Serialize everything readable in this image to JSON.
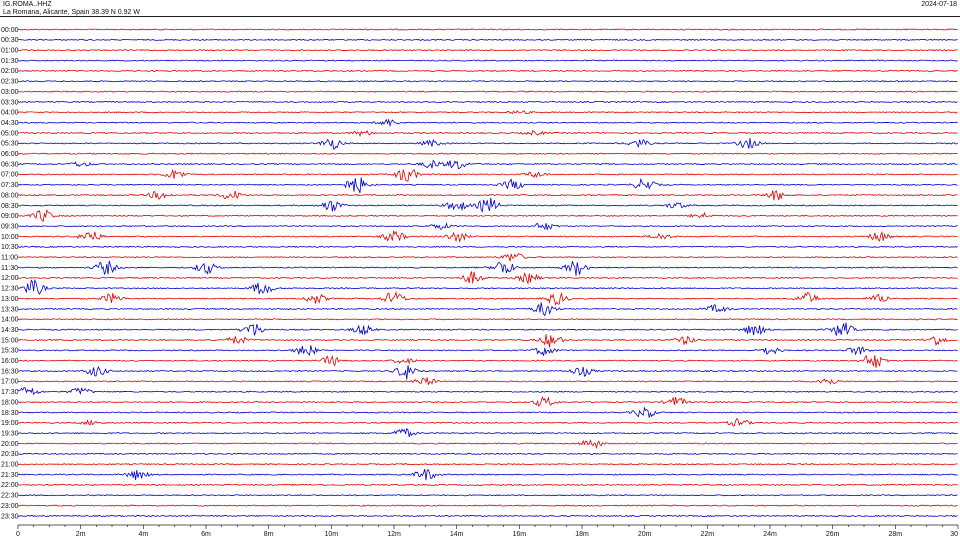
{
  "header": {
    "station": "IG.ROMA..HHZ",
    "location": "La Romana, Alicante, Spain  38.39 N 0.92 W",
    "date": "2024-07-18"
  },
  "chart_data": {
    "type": "line",
    "title": "",
    "xlabel": "",
    "ylabel": "",
    "x_unit_minutes_range": [
      0,
      30
    ],
    "x_ticks": [
      "0",
      "2m",
      "4m",
      "6m",
      "8m",
      "10m",
      "12m",
      "14m",
      "16m",
      "18m",
      "20m",
      "22m",
      "24m",
      "26m",
      "28m",
      "30"
    ],
    "row_labels": [
      "00:00",
      "00:30",
      "01:00",
      "01:30",
      "02:00",
      "02:30",
      "03:00",
      "03:30",
      "04:00",
      "04:30",
      "05:00",
      "05:30",
      "06:00",
      "06:30",
      "07:00",
      "07:30",
      "08:00",
      "08:30",
      "09:00",
      "09:30",
      "10:00",
      "10:30",
      "11:00",
      "11:30",
      "12:00",
      "12:30",
      "13:00",
      "13:30",
      "14:00",
      "14:30",
      "15:00",
      "15:30",
      "16:00",
      "16:30",
      "17:00",
      "17:30",
      "18:00",
      "18:30",
      "19:00",
      "19:30",
      "20:00",
      "20:30",
      "21:00",
      "21:30",
      "22:00",
      "22:30",
      "23:00",
      "23:30"
    ],
    "trace_colors": [
      "#e00000",
      "#0000cc"
    ],
    "grid": false,
    "bursts": [
      {
        "row": 8,
        "minute": 16.0,
        "amplitude": 1.5
      },
      {
        "row": 9,
        "minute": 11.8,
        "amplitude": 3.5
      },
      {
        "row": 10,
        "minute": 11.0,
        "amplitude": 2.5
      },
      {
        "row": 10,
        "minute": 16.5,
        "amplitude": 2.0
      },
      {
        "row": 11,
        "minute": 10.0,
        "amplitude": 6.0
      },
      {
        "row": 11,
        "minute": 13.2,
        "amplitude": 3.0
      },
      {
        "row": 11,
        "minute": 19.8,
        "amplitude": 4.0
      },
      {
        "row": 11,
        "minute": 23.3,
        "amplitude": 5.0
      },
      {
        "row": 13,
        "minute": 2.0,
        "amplitude": 2.5
      },
      {
        "row": 13,
        "minute": 13.2,
        "amplitude": 4.0
      },
      {
        "row": 13,
        "minute": 14.0,
        "amplitude": 5.0
      },
      {
        "row": 14,
        "minute": 5.0,
        "amplitude": 5.0
      },
      {
        "row": 14,
        "minute": 12.4,
        "amplitude": 8.0
      },
      {
        "row": 14,
        "minute": 16.5,
        "amplitude": 3.0
      },
      {
        "row": 15,
        "minute": 10.8,
        "amplitude": 9.0
      },
      {
        "row": 15,
        "minute": 15.8,
        "amplitude": 5.0
      },
      {
        "row": 15,
        "minute": 20.0,
        "amplitude": 6.0
      },
      {
        "row": 16,
        "minute": 4.5,
        "amplitude": 4.0
      },
      {
        "row": 16,
        "minute": 6.8,
        "amplitude": 5.0
      },
      {
        "row": 16,
        "minute": 24.2,
        "amplitude": 5.0
      },
      {
        "row": 17,
        "minute": 10.0,
        "amplitude": 6.0
      },
      {
        "row": 17,
        "minute": 14.0,
        "amplitude": 6.0
      },
      {
        "row": 17,
        "minute": 15.0,
        "amplitude": 8.0
      },
      {
        "row": 17,
        "minute": 21.0,
        "amplitude": 3.0
      },
      {
        "row": 18,
        "minute": 0.8,
        "amplitude": 6.0
      },
      {
        "row": 18,
        "minute": 21.8,
        "amplitude": 3.0
      },
      {
        "row": 19,
        "minute": 13.5,
        "amplitude": 3.0
      },
      {
        "row": 19,
        "minute": 16.8,
        "amplitude": 4.0
      },
      {
        "row": 20,
        "minute": 2.3,
        "amplitude": 6.0
      },
      {
        "row": 20,
        "minute": 12.0,
        "amplitude": 6.0
      },
      {
        "row": 20,
        "minute": 14.0,
        "amplitude": 5.0
      },
      {
        "row": 20,
        "minute": 20.5,
        "amplitude": 3.0
      },
      {
        "row": 20,
        "minute": 27.5,
        "amplitude": 5.0
      },
      {
        "row": 22,
        "minute": 15.8,
        "amplitude": 5.0
      },
      {
        "row": 23,
        "minute": 2.8,
        "amplitude": 7.0
      },
      {
        "row": 23,
        "minute": 6.0,
        "amplitude": 6.0
      },
      {
        "row": 23,
        "minute": 15.5,
        "amplitude": 8.0
      },
      {
        "row": 23,
        "minute": 17.8,
        "amplitude": 8.0
      },
      {
        "row": 24,
        "minute": 14.5,
        "amplitude": 6.0
      },
      {
        "row": 24,
        "minute": 16.3,
        "amplitude": 5.0
      },
      {
        "row": 25,
        "minute": 0.5,
        "amplitude": 8.0
      },
      {
        "row": 25,
        "minute": 7.8,
        "amplitude": 7.0
      },
      {
        "row": 26,
        "minute": 3.0,
        "amplitude": 5.0
      },
      {
        "row": 26,
        "minute": 9.5,
        "amplitude": 5.0
      },
      {
        "row": 26,
        "minute": 12.0,
        "amplitude": 7.0
      },
      {
        "row": 26,
        "minute": 17.2,
        "amplitude": 6.0
      },
      {
        "row": 26,
        "minute": 25.2,
        "amplitude": 6.0
      },
      {
        "row": 26,
        "minute": 27.5,
        "amplitude": 4.0
      },
      {
        "row": 27,
        "minute": 16.8,
        "amplitude": 7.0
      },
      {
        "row": 27,
        "minute": 22.3,
        "amplitude": 4.0
      },
      {
        "row": 29,
        "minute": 7.5,
        "amplitude": 7.0
      },
      {
        "row": 29,
        "minute": 11.0,
        "amplitude": 5.0
      },
      {
        "row": 29,
        "minute": 23.5,
        "amplitude": 6.0
      },
      {
        "row": 29,
        "minute": 26.3,
        "amplitude": 8.0
      },
      {
        "row": 30,
        "minute": 7.0,
        "amplitude": 4.0
      },
      {
        "row": 30,
        "minute": 17.0,
        "amplitude": 7.0
      },
      {
        "row": 30,
        "minute": 21.3,
        "amplitude": 4.0
      },
      {
        "row": 30,
        "minute": 29.3,
        "amplitude": 5.0
      },
      {
        "row": 31,
        "minute": 9.2,
        "amplitude": 6.0
      },
      {
        "row": 31,
        "minute": 16.8,
        "amplitude": 5.0
      },
      {
        "row": 31,
        "minute": 24.0,
        "amplitude": 4.0
      },
      {
        "row": 31,
        "minute": 26.8,
        "amplitude": 4.0
      },
      {
        "row": 32,
        "minute": 10.0,
        "amplitude": 5.0
      },
      {
        "row": 32,
        "minute": 12.3,
        "amplitude": 3.0
      },
      {
        "row": 32,
        "minute": 27.3,
        "amplitude": 8.0
      },
      {
        "row": 33,
        "minute": 2.5,
        "amplitude": 5.0
      },
      {
        "row": 33,
        "minute": 12.4,
        "amplitude": 8.0
      },
      {
        "row": 33,
        "minute": 18.0,
        "amplitude": 5.0
      },
      {
        "row": 34,
        "minute": 13.0,
        "amplitude": 4.0
      },
      {
        "row": 34,
        "minute": 25.8,
        "amplitude": 4.0
      },
      {
        "row": 35,
        "minute": 0.3,
        "amplitude": 5.0
      },
      {
        "row": 35,
        "minute": 2.0,
        "amplitude": 4.0
      },
      {
        "row": 36,
        "minute": 16.8,
        "amplitude": 5.0
      },
      {
        "row": 36,
        "minute": 21.0,
        "amplitude": 5.0
      },
      {
        "row": 37,
        "minute": 20.0,
        "amplitude": 6.0
      },
      {
        "row": 38,
        "minute": 2.3,
        "amplitude": 2.0
      },
      {
        "row": 38,
        "minute": 23.0,
        "amplitude": 4.0
      },
      {
        "row": 39,
        "minute": 12.3,
        "amplitude": 5.0
      },
      {
        "row": 40,
        "minute": 18.3,
        "amplitude": 5.0
      },
      {
        "row": 43,
        "minute": 3.8,
        "amplitude": 5.0
      },
      {
        "row": 43,
        "minute": 13.0,
        "amplitude": 6.0
      }
    ]
  }
}
